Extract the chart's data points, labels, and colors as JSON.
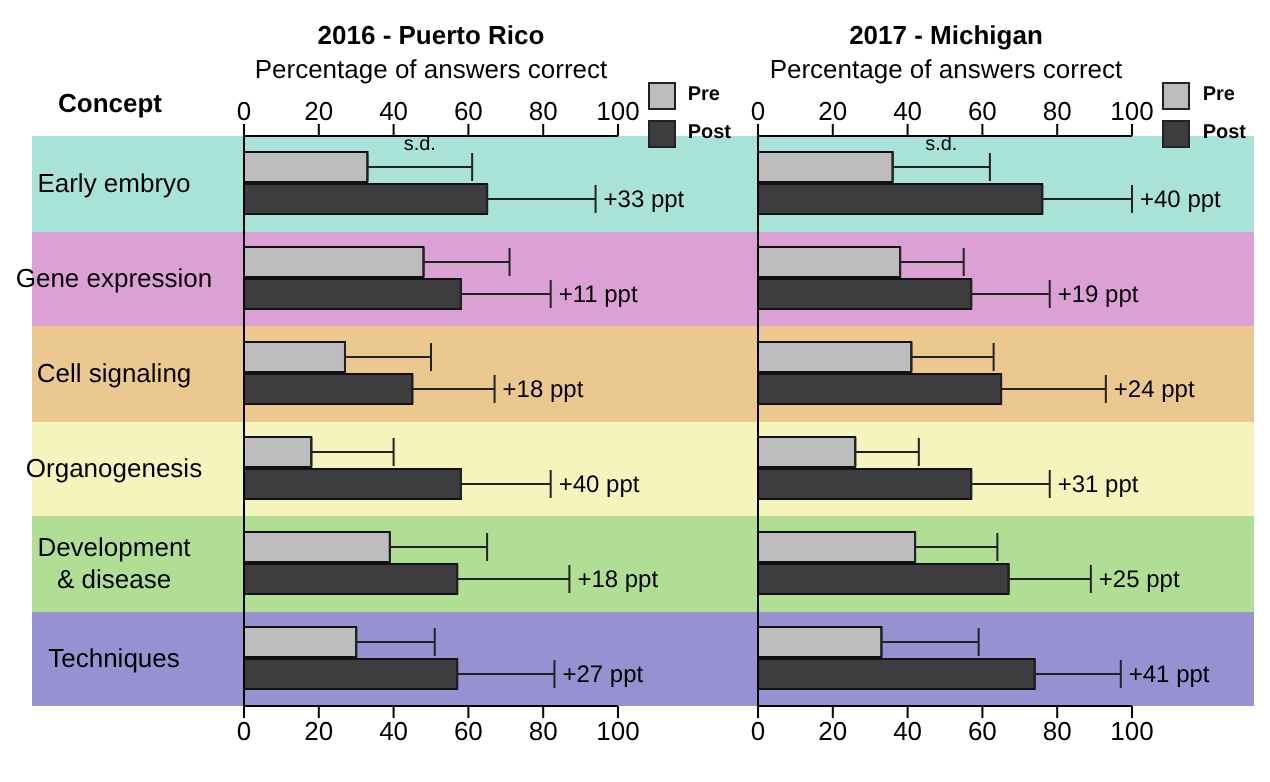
{
  "chart_data": [
    {
      "type": "bar",
      "orientation": "horizontal",
      "title": "2016 - Puerto Rico",
      "x2label": "Percentage of answers correct",
      "ylabel": "Concept",
      "categories": [
        "Early embryo",
        "Gene expression",
        "Cell signaling",
        "Organogenesis",
        "Development & disease",
        "Techniques"
      ],
      "series": [
        {
          "name": "Pre",
          "color": "#bdbdbd",
          "values": [
            33,
            48,
            27,
            18,
            39,
            30
          ],
          "errors": [
            [
              33,
              61
            ],
            [
              48,
              71
            ],
            [
              27,
              50
            ],
            [
              18,
              40
            ],
            [
              39,
              65
            ],
            [
              30,
              51
            ]
          ]
        },
        {
          "name": "Post",
          "color": "#3d3d3f",
          "values": [
            65,
            58,
            45,
            58,
            57,
            57
          ],
          "errors": [
            [
              65,
              94
            ],
            [
              58,
              82
            ],
            [
              45,
              67
            ],
            [
              58,
              82
            ],
            [
              57,
              87
            ],
            [
              57,
              83
            ]
          ]
        }
      ],
      "xlim": [
        0,
        100
      ],
      "xticks": [
        0,
        20,
        40,
        60,
        80,
        100
      ],
      "x2lim": [
        0,
        100
      ],
      "x2ticks": [
        0,
        20,
        40,
        60,
        80,
        100
      ],
      "legend": "top right",
      "bands": [
        {
          "axis": "y",
          "from": "Early embryo",
          "to": "Early embryo",
          "color": "#a9e2d6"
        },
        {
          "axis": "y",
          "from": "Gene expression",
          "to": "Gene expression",
          "color": "#dca1d4"
        },
        {
          "axis": "y",
          "from": "Cell signaling",
          "to": "Cell signaling",
          "color": "#ecc891"
        },
        {
          "axis": "y",
          "from": "Organogenesis",
          "to": "Organogenesis",
          "color": "#f6f4bd"
        },
        {
          "axis": "y",
          "from": "Development & disease",
          "to": "Development & disease",
          "color": "#b0de95"
        },
        {
          "axis": "y",
          "from": "Techniques",
          "to": "Techniques",
          "color": "#9691d1"
        }
      ],
      "annotations": [
        "s.d.",
        "+33 ppt",
        "+11 ppt",
        "+18 ppt",
        "+40 ppt",
        "+18 ppt",
        "+27 ppt"
      ]
    },
    {
      "type": "bar",
      "orientation": "horizontal",
      "title": "2017 - Michigan",
      "x2label": "Percentage of answers correct",
      "categories": [
        "Early embryo",
        "Gene expression",
        "Cell signaling",
        "Organogenesis",
        "Development & disease",
        "Techniques"
      ],
      "tick_labels": "x",
      "series": [
        {
          "name": "Pre",
          "color": "#bdbdbd",
          "values": [
            36,
            38,
            41,
            26,
            42,
            33
          ],
          "errors": [
            [
              36,
              62
            ],
            [
              38,
              55
            ],
            [
              41,
              63
            ],
            [
              26,
              43
            ],
            [
              42,
              64
            ],
            [
              33,
              59
            ]
          ]
        },
        {
          "name": "Post",
          "color": "#3d3d3f",
          "values": [
            76,
            57,
            65,
            57,
            67,
            74
          ],
          "errors": [
            [
              76,
              100
            ],
            [
              57,
              78
            ],
            [
              65,
              93
            ],
            [
              57,
              78
            ],
            [
              67,
              89
            ],
            [
              74,
              97
            ]
          ]
        }
      ],
      "xlim": [
        0,
        100
      ],
      "xticks": [
        0,
        20,
        40,
        60,
        80,
        100
      ],
      "x2lim": [
        0,
        100
      ],
      "x2ticks": [
        0,
        20,
        40,
        60,
        80,
        100
      ],
      "legend": "top right",
      "bands": [
        {
          "axis": "y",
          "from": "Early embryo",
          "to": "Early embryo",
          "color": "#a9e2d6"
        },
        {
          "axis": "y",
          "from": "Gene expression",
          "to": "Gene expression",
          "color": "#dca1d4"
        },
        {
          "axis": "y",
          "from": "Cell signaling",
          "to": "Cell signaling",
          "color": "#ecc891"
        },
        {
          "axis": "y",
          "from": "Organogenesis",
          "to": "Organogenesis",
          "color": "#f6f4bd"
        },
        {
          "axis": "y",
          "from": "Development & disease",
          "to": "Development & disease",
          "color": "#b0de95"
        },
        {
          "axis": "y",
          "from": "Techniques",
          "to": "Techniques",
          "color": "#9691d1"
        }
      ],
      "annotations": [
        "s.d.",
        "+40 ppt",
        "+19 ppt",
        "+24 ppt",
        "+31 ppt",
        "+25 ppt",
        "+41 ppt"
      ]
    }
  ]
}
